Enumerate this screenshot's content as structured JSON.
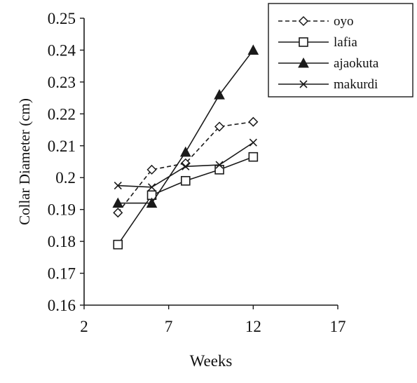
{
  "chart_data": {
    "type": "line",
    "title": "",
    "xlabel": "Weeks",
    "ylabel": "Collar Diameter (cm)",
    "xlim": [
      2,
      17
    ],
    "ylim": [
      0.16,
      0.25
    ],
    "xticks": [
      2,
      7,
      12,
      17
    ],
    "xtick_labels": [
      "2",
      "7",
      "12",
      "17"
    ],
    "yticks": [
      0.16,
      0.17,
      0.18,
      0.19,
      0.2,
      0.21,
      0.22,
      0.23,
      0.24,
      0.25
    ],
    "ytick_labels": [
      "0.16",
      "0.17",
      "0.18",
      "0.19",
      "0.2",
      "0.21",
      "0.22",
      "0.23",
      "0.24",
      "0.25"
    ],
    "grid": false,
    "legend_position": "top-right",
    "series": [
      {
        "name": "oyo",
        "marker": "diamond-open",
        "line": "dashed",
        "x": [
          4,
          6,
          8,
          10,
          12
        ],
        "y": [
          0.189,
          0.2025,
          0.2045,
          0.216,
          0.2175
        ]
      },
      {
        "name": "lafia",
        "marker": "square-open",
        "line": "solid",
        "x": [
          4,
          6,
          8,
          10,
          12
        ],
        "y": [
          0.179,
          0.1945,
          0.199,
          0.2025,
          0.2065
        ]
      },
      {
        "name": "ajaokuta",
        "marker": "triangle-filled",
        "line": "solid",
        "x": [
          4,
          6,
          8,
          10,
          12
        ],
        "y": [
          0.192,
          0.192,
          0.208,
          0.226,
          0.24
        ]
      },
      {
        "name": "makurdi",
        "marker": "x",
        "line": "solid",
        "x": [
          4,
          6,
          8,
          10,
          12
        ],
        "y": [
          0.1975,
          0.197,
          0.2035,
          0.204,
          0.211
        ]
      }
    ],
    "colors": {
      "line": "#1a1a1a",
      "background": "#ffffff"
    }
  }
}
